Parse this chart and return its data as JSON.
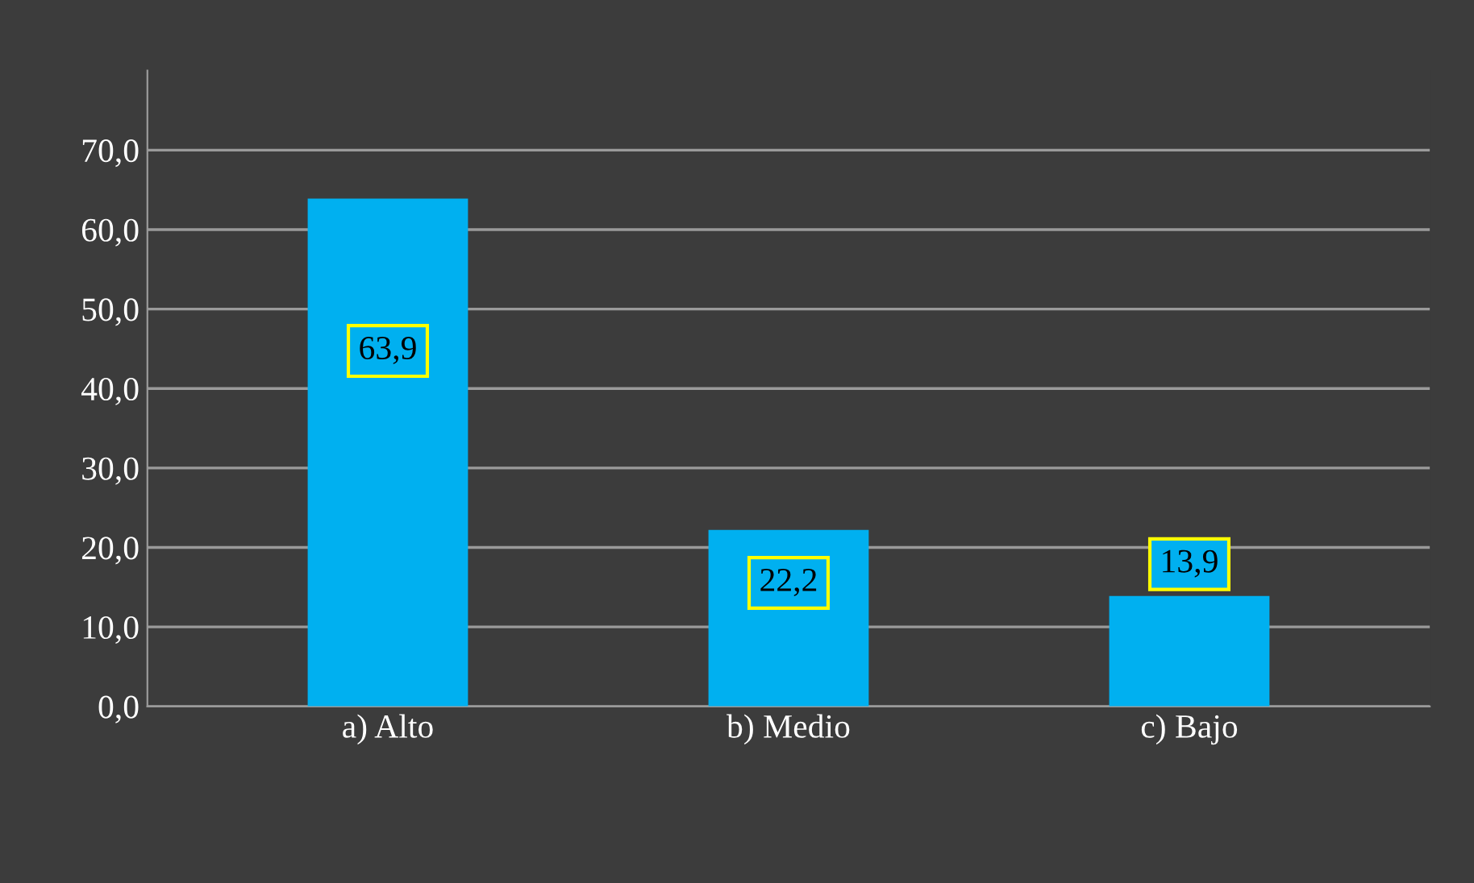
{
  "chart_data": {
    "type": "bar",
    "categories": [
      "a) Alto",
      "b) Medio",
      "c) Bajo"
    ],
    "values": [
      63.9,
      22.2,
      13.9
    ],
    "color": "#00b0f0",
    "value_labels": [
      "63,9",
      "22,2",
      "13,9"
    ],
    "ylim": [
      0,
      80
    ],
    "yticks": [
      {
        "value": 0,
        "label": "0,0"
      },
      {
        "value": 10,
        "label": "10,0"
      },
      {
        "value": 20,
        "label": "20,0"
      },
      {
        "value": 30,
        "label": "30,0"
      },
      {
        "value": 40,
        "label": "40,0"
      },
      {
        "value": 50,
        "label": "50,0"
      },
      {
        "value": 60,
        "label": "60,0"
      },
      {
        "value": 70,
        "label": "70,0"
      }
    ],
    "grid": "y"
  }
}
